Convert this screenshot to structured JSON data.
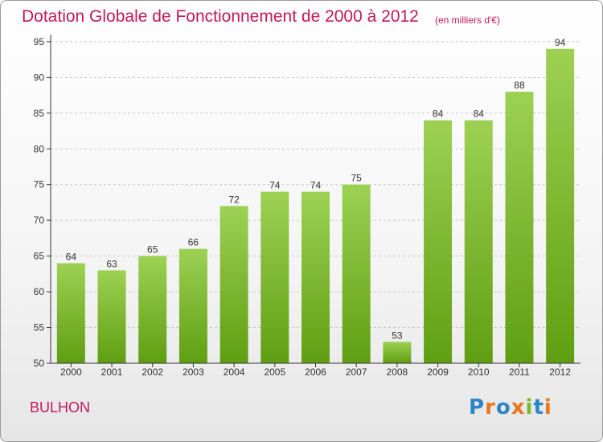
{
  "header": {
    "title": "Dotation Globale de Fonctionnement de 2000 à 2012",
    "unit": "(en milliers d'€)"
  },
  "footer": {
    "commune": "BULHON",
    "logo": "Proxiti"
  },
  "colors": {
    "bar_light": "#9dd153",
    "bar_dark": "#5f9e12",
    "title": "#c2185b",
    "axis": "#333333",
    "grid": "#c8c8c8"
  },
  "chart_data": {
    "type": "bar",
    "categories": [
      "2000",
      "2001",
      "2002",
      "2003",
      "2004",
      "2005",
      "2006",
      "2007",
      "2008",
      "2009",
      "2010",
      "2011",
      "2012"
    ],
    "values": [
      64,
      63,
      65,
      66,
      72,
      74,
      74,
      75,
      53,
      84,
      84,
      88,
      94
    ],
    "ylim": [
      50,
      96
    ],
    "yticks": [
      50,
      55,
      60,
      65,
      70,
      75,
      80,
      85,
      90,
      95
    ],
    "grid": "horizontal dashed",
    "show_value_labels": true
  }
}
